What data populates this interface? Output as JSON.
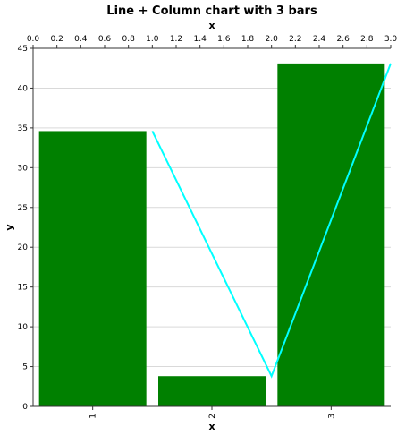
{
  "chart_data": {
    "type": "bar",
    "title": "Line + Column chart with 3 bars",
    "xlabel_bottom": "x",
    "xlabel_top": "x",
    "ylabel": "y",
    "categories": [
      "1",
      "2",
      "3"
    ],
    "bars": {
      "values": [
        34.6,
        3.8,
        43.1
      ],
      "color": "#008000"
    },
    "line": {
      "x": [
        1.0,
        2.0,
        3.0
      ],
      "y": [
        34.6,
        3.8,
        43.1
      ],
      "color": "#00ffff"
    },
    "ylim": [
      0,
      45
    ],
    "yticks": [
      "0",
      "5",
      "10",
      "15",
      "20",
      "25",
      "30",
      "35",
      "40",
      "45"
    ],
    "top_xlim": [
      0,
      3
    ],
    "top_xticks": [
      "0.0",
      "0.2",
      "0.4",
      "0.6",
      "0.8",
      "1.0",
      "1.2",
      "1.4",
      "1.6",
      "1.8",
      "2.0",
      "2.2",
      "2.4",
      "2.6",
      "2.8",
      "3.0"
    ],
    "grid": true
  }
}
